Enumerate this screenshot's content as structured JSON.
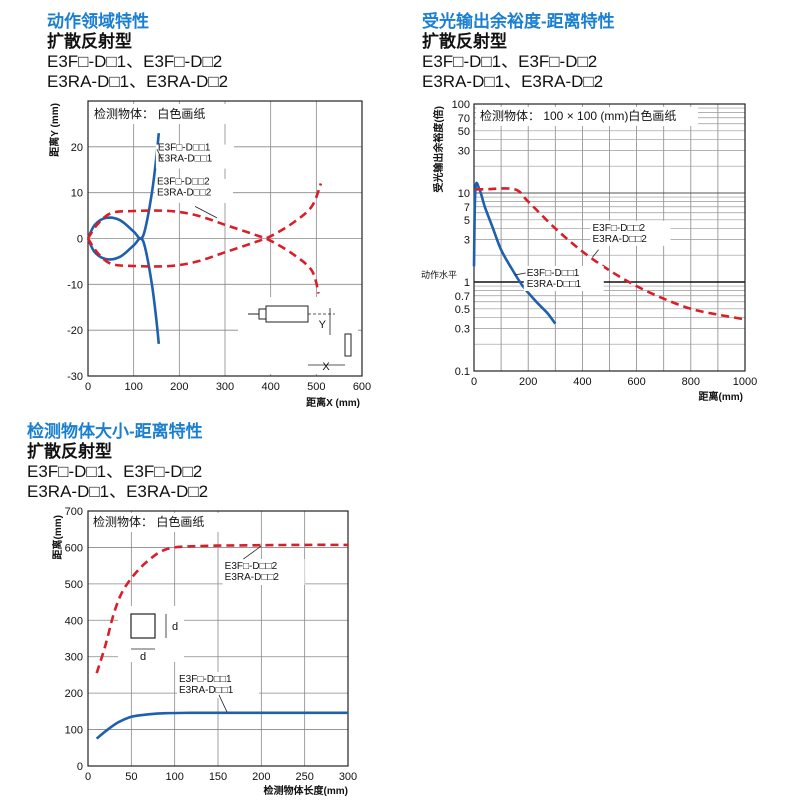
{
  "charts": [
    {
      "heading": "动作领域特性",
      "subheading": "扩散反射型",
      "models": [
        "E3F□-D□1、E3F□-D□2",
        "E3RA-D□1、E3RA-D□2"
      ],
      "chart_data": {
        "type": "line",
        "xlabel": "距离X (mm)",
        "ylabel": "距离Y (mm)",
        "xlim": [
          0,
          600
        ],
        "ylim": [
          -30,
          30
        ],
        "xticks": [
          "0",
          "100",
          "200",
          "300",
          "400",
          "500",
          "600"
        ],
        "yticks": [
          "-30",
          "-20",
          "-10",
          "0",
          "10",
          "20"
        ],
        "note": "检测物体： 白色画纸",
        "grid": true,
        "series": [
          {
            "label": "E3F□-D□□1\nE3RA-D□□1",
            "style": "solid",
            "color": "#1e5fae",
            "points": [
              [
                155,
                23
              ],
              [
                145,
                17
              ],
              [
                130,
                10
              ],
              [
                110,
                5
              ],
              [
                80,
                2
              ],
              [
                60,
                0
              ],
              [
                0,
                0
              ],
              [
                60,
                0
              ],
              [
                80,
                -2
              ],
              [
                110,
                -5
              ],
              [
                130,
                -10
              ],
              [
                145,
                -17
              ],
              [
                155,
                -23
              ]
            ],
            "curve_upper": [
              [
                0,
                0
              ],
              [
                15,
                3
              ],
              [
                40,
                4.5
              ],
              [
                70,
                4
              ],
              [
                100,
                1.5
              ],
              [
                115,
                0
              ],
              [
                125,
                2
              ],
              [
                140,
                10
              ],
              [
                150,
                18
              ],
              [
                155,
                23
              ]
            ],
            "curve_lower": [
              [
                0,
                0
              ],
              [
                15,
                -3
              ],
              [
                40,
                -4.5
              ],
              [
                70,
                -4
              ],
              [
                100,
                -1.5
              ],
              [
                115,
                0
              ],
              [
                125,
                -2
              ],
              [
                140,
                -10
              ],
              [
                150,
                -18
              ],
              [
                155,
                -23
              ]
            ]
          },
          {
            "label": "E3F□-D□□2\nE3RA-D□□2",
            "style": "dashed",
            "color": "#d91e2a",
            "curve_upper": [
              [
                0,
                0
              ],
              [
                20,
                3
              ],
              [
                50,
                5.5
              ],
              [
                100,
                6
              ],
              [
                180,
                6
              ],
              [
                240,
                5
              ],
              [
                300,
                3
              ],
              [
                360,
                1
              ],
              [
                400,
                -0.5
              ],
              [
                450,
                -3.5
              ],
              [
                490,
                -7
              ],
              [
                505,
                -12
              ]
            ],
            "curve_lower": [
              [
                0,
                0
              ],
              [
                20,
                -3
              ],
              [
                50,
                -5.5
              ],
              [
                100,
                -6
              ],
              [
                180,
                -6
              ],
              [
                240,
                -5
              ],
              [
                300,
                -3
              ],
              [
                360,
                -1
              ],
              [
                400,
                0.5
              ],
              [
                450,
                3.5
              ],
              [
                490,
                7
              ],
              [
                510,
                12
              ]
            ]
          }
        ],
        "diagram_labels": {
          "y": "Y",
          "x": "X"
        }
      }
    },
    {
      "heading": "受光输出余裕度-距离特性",
      "subheading": "扩散反射型",
      "models": [
        "E3F□-D□1、E3F□-D□2",
        "E3RA-D□1、E3RA-D□2"
      ],
      "chart_data": {
        "type": "line",
        "xlabel": "距离(mm)",
        "ylabel": "受光输出余裕度(倍)",
        "xlim": [
          0,
          1000
        ],
        "ylim": [
          0.1,
          100
        ],
        "yscale": "log",
        "xticks": [
          "0",
          "200",
          "400",
          "600",
          "800",
          "1000"
        ],
        "yticks": [
          "0.1",
          "0.3",
          "0.5",
          "0.7",
          "1",
          "3",
          "5",
          "7",
          "10",
          "30",
          "50",
          "70",
          "100"
        ],
        "operating_level_label": "动作水平",
        "note": "检测物体： 100 × 100 (mm)白色画纸",
        "grid": true,
        "series": [
          {
            "label": "E3F□-D□□1\nE3RA-D□□1",
            "style": "solid",
            "color": "#1e5fae",
            "points": [
              [
                0,
                1.5
              ],
              [
                5,
                11
              ],
              [
                20,
                11
              ],
              [
                40,
                7
              ],
              [
                70,
                4
              ],
              [
                100,
                2.3
              ],
              [
                140,
                1.4
              ],
              [
                180,
                0.9
              ],
              [
                230,
                0.6
              ],
              [
                270,
                0.45
              ],
              [
                300,
                0.34
              ]
            ]
          },
          {
            "label": "E3F□-D□□2\nE3RA-D□□2",
            "style": "dashed",
            "color": "#d91e2a",
            "points": [
              [
                5,
                11
              ],
              [
                40,
                11
              ],
              [
                150,
                11
              ],
              [
                200,
                8
              ],
              [
                300,
                4
              ],
              [
                400,
                2.2
              ],
              [
                500,
                1.35
              ],
              [
                600,
                0.9
              ],
              [
                700,
                0.65
              ],
              [
                800,
                0.5
              ],
              [
                900,
                0.43
              ],
              [
                1000,
                0.38
              ]
            ]
          }
        ]
      }
    },
    {
      "heading": "检测物体大小-距离特性",
      "subheading": "扩散反射型",
      "models": [
        "E3F□-D□1、E3F□-D□2",
        "E3RA-D□1、E3RA-D□2"
      ],
      "chart_data": {
        "type": "line",
        "xlabel": "检测物体长度(mm)",
        "ylabel": "距离(mm)",
        "xlim": [
          0,
          300
        ],
        "ylim": [
          0,
          700
        ],
        "xticks": [
          "0",
          "50",
          "100",
          "150",
          "200",
          "250",
          "300"
        ],
        "yticks": [
          "0",
          "100",
          "200",
          "300",
          "400",
          "500",
          "600",
          "700"
        ],
        "note": "检测物体： 白色画纸",
        "grid": true,
        "diagram_labels": {
          "side": "d",
          "bottom": "d"
        },
        "series": [
          {
            "label": "E3F□-D□□2\nE3RA-D□□2",
            "style": "dashed",
            "color": "#d91e2a",
            "points": [
              [
                10,
                255
              ],
              [
                20,
                330
              ],
              [
                30,
                420
              ],
              [
                40,
                480
              ],
              [
                55,
                530
              ],
              [
                70,
                565
              ],
              [
                85,
                590
              ],
              [
                100,
                600
              ],
              [
                120,
                603
              ],
              [
                150,
                605
              ],
              [
                200,
                606
              ],
              [
                250,
                607
              ],
              [
                300,
                607
              ]
            ]
          },
          {
            "label": "E3F□-D□□1\nE3RA-D□□1",
            "style": "solid",
            "color": "#1e5fae",
            "points": [
              [
                10,
                75
              ],
              [
                20,
                95
              ],
              [
                35,
                120
              ],
              [
                50,
                135
              ],
              [
                70,
                142
              ],
              [
                90,
                145
              ],
              [
                120,
                146
              ],
              [
                150,
                146
              ],
              [
                200,
                146
              ],
              [
                250,
                146
              ],
              [
                300,
                146
              ]
            ]
          }
        ]
      }
    }
  ]
}
